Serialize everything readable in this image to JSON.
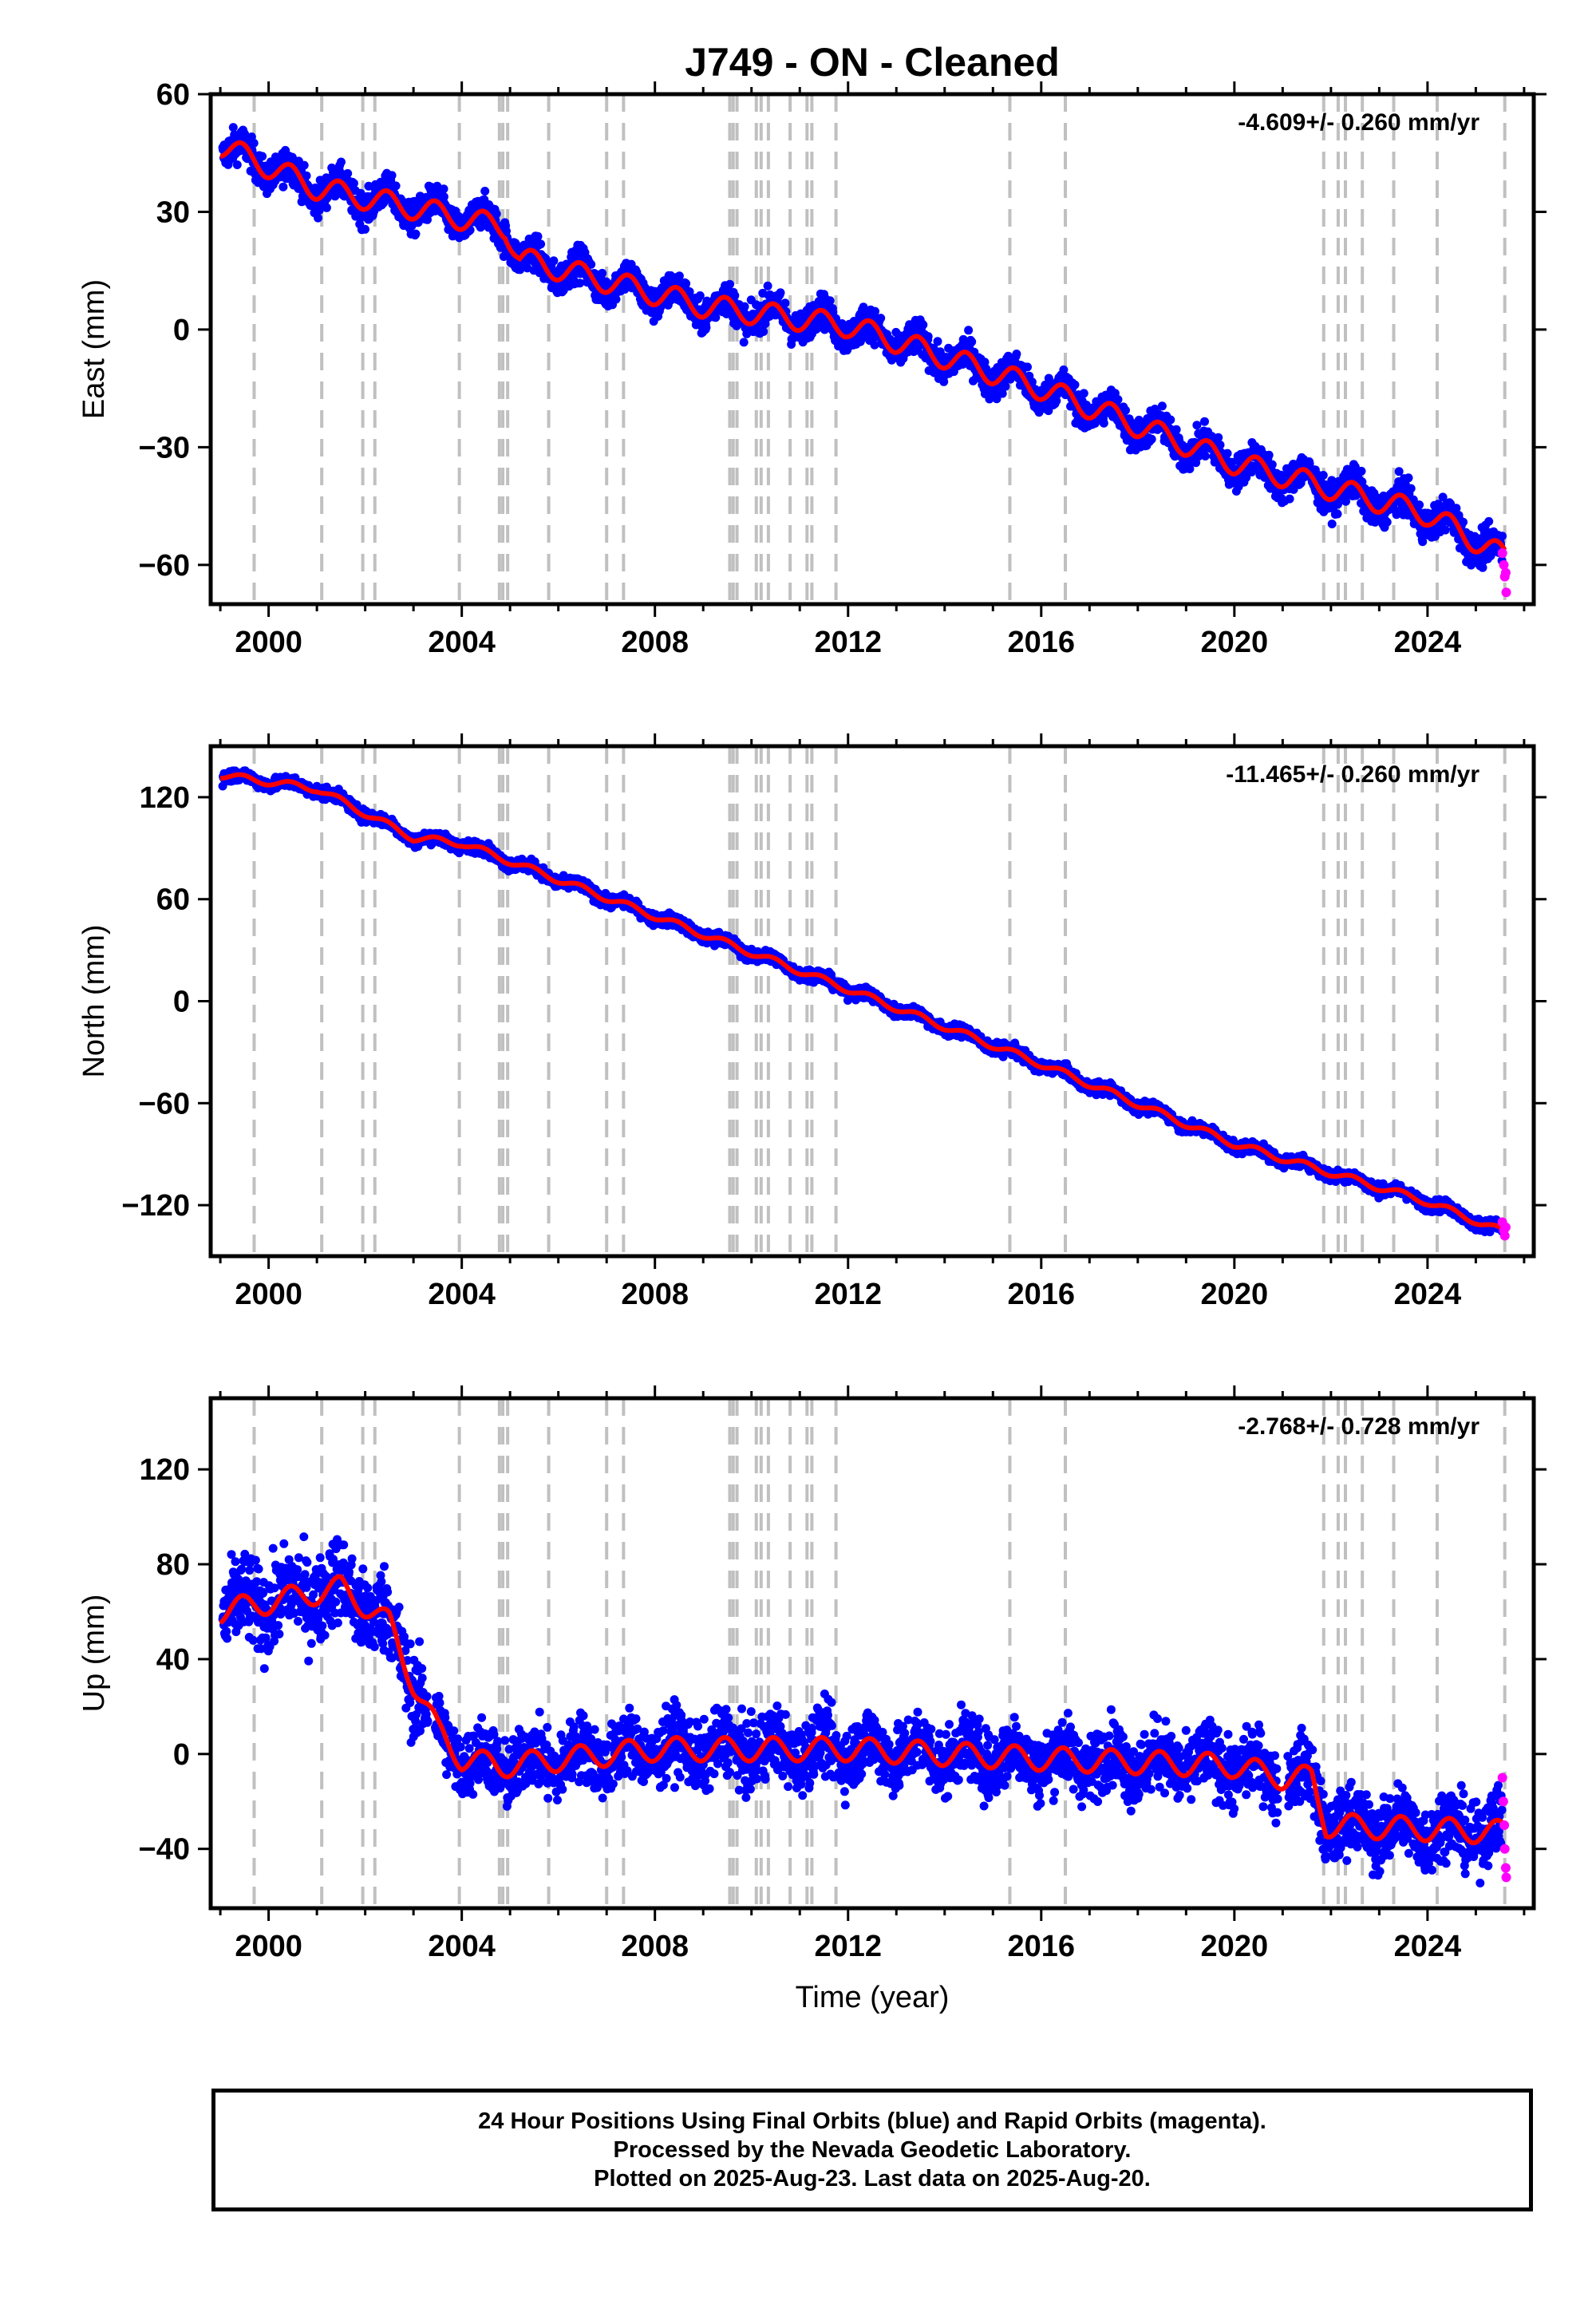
{
  "title": "J749  - ON - Cleaned",
  "xlabel": "Time (year)",
  "footer": {
    "line1": "24 Hour Positions Using Final Orbits (blue) and Rapid Orbits (magenta).",
    "line2": "Processed by the Nevada Geodetic Laboratory.",
    "line3": "Plotted on 2025-Aug-23. Last data on 2025-Aug-20."
  },
  "colors": {
    "final_points": "#0000ff",
    "rapid_points": "#ff00ff",
    "model_line": "#ff0000",
    "equipment_lines": "#c0c0c0"
  },
  "chart_data": [
    {
      "type": "scatter",
      "component": "east",
      "ylabel": "East (mm)",
      "rate_label": "-4.609+/- 0.260 mm/yr",
      "xlim": [
        1998.8,
        2026.2
      ],
      "ylim": [
        -70,
        60
      ],
      "xticks": [
        2000,
        2004,
        2008,
        2012,
        2016,
        2020,
        2024
      ],
      "yticks": [
        -60,
        -30,
        0,
        30,
        60
      ],
      "x_tick_labels": [
        "2000",
        "2004",
        "2008",
        "2012",
        "2016",
        "2020",
        "2024"
      ],
      "y_tick_labels": [
        "−60",
        "−30",
        "0",
        "30",
        "60"
      ],
      "model_trend": {
        "x": [
          1999.0,
          2001.0,
          2003.0,
          2004.9,
          2005.2,
          2009.0,
          2012.0,
          2016.0,
          2020.0,
          2024.0,
          2025.6
        ],
        "y": [
          47,
          36,
          31,
          26,
          18,
          6,
          1,
          -15,
          -34,
          -47,
          -58
        ]
      },
      "annual_amplitude": 3,
      "noise": 3,
      "rapid_points": {
        "x": [
          2025.55,
          2025.58,
          2025.6,
          2025.62,
          2025.63
        ],
        "y": [
          -57,
          -60,
          -63,
          -62,
          -67
        ]
      }
    },
    {
      "type": "scatter",
      "component": "north",
      "ylabel": "North (mm)",
      "rate_label": "-11.465+/- 0.260 mm/yr",
      "xlim": [
        1998.8,
        2026.2
      ],
      "ylim": [
        -150,
        150
      ],
      "xticks": [
        2000,
        2004,
        2008,
        2012,
        2016,
        2020,
        2024
      ],
      "yticks": [
        -120,
        -60,
        0,
        60,
        120
      ],
      "x_tick_labels": [
        "2000",
        "2004",
        "2008",
        "2012",
        "2016",
        "2020",
        "2024"
      ],
      "y_tick_labels": [
        "−120",
        "−60",
        "0",
        "60",
        "120"
      ],
      "model_trend": {
        "x": [
          1999.0,
          2001.0,
          2003.0,
          2004.0,
          2008.0,
          2012.0,
          2016.0,
          2020.0,
          2024.0,
          2025.6
        ],
        "y": [
          133,
          125,
          96,
          93,
          50,
          7,
          -37,
          -84,
          -118,
          -136
        ]
      },
      "annual_amplitude": 2,
      "noise": 2.5,
      "rapid_points": {
        "x": [
          2025.55,
          2025.58,
          2025.6,
          2025.62
        ],
        "y": [
          -130,
          -135,
          -138,
          -133
        ]
      }
    },
    {
      "type": "scatter",
      "component": "up",
      "ylabel": "Up (mm)",
      "rate_label": "-2.768+/- 0.728 mm/yr",
      "xlim": [
        1998.8,
        2026.2
      ],
      "ylim": [
        -65,
        150
      ],
      "xticks": [
        2000,
        2004,
        2008,
        2012,
        2016,
        2020,
        2024
      ],
      "yticks": [
        -40,
        0,
        40,
        80,
        120
      ],
      "x_tick_labels": [
        "2000",
        "2004",
        "2008",
        "2012",
        "2016",
        "2020",
        "2024"
      ],
      "y_tick_labels": [
        "−40",
        "0",
        "40",
        "80",
        "120"
      ],
      "model_trend": {
        "x": [
          1999.0,
          2001.5,
          2002.5,
          2003.0,
          2003.5,
          2004.0,
          2004.8,
          2008.0,
          2012.0,
          2016.0,
          2020.0,
          2021.0,
          2021.6,
          2021.9,
          2025.6
        ],
        "y": [
          60,
          70,
          55,
          30,
          10,
          -2,
          -5,
          2,
          2,
          -2,
          -5,
          -10,
          -10,
          -30,
          -33
        ]
      },
      "annual_amplitude": 5,
      "noise": 10,
      "rapid_points": {
        "x": [
          2025.55,
          2025.57,
          2025.59,
          2025.6,
          2025.62,
          2025.63
        ],
        "y": [
          -10,
          -20,
          -30,
          -40,
          -48,
          -52
        ]
      }
    }
  ],
  "equipment_change_years": [
    1999.7,
    2001.1,
    2001.95,
    2002.2,
    2003.95,
    2004.78,
    2004.85,
    2004.95,
    2005.8,
    2007.0,
    2007.35,
    2009.55,
    2009.62,
    2009.7,
    2010.1,
    2010.2,
    2010.35,
    2010.8,
    2011.15,
    2011.25,
    2011.75,
    2015.35,
    2016.5,
    2021.85,
    2022.15,
    2022.3,
    2022.65,
    2023.3,
    2024.2,
    2025.6
  ]
}
